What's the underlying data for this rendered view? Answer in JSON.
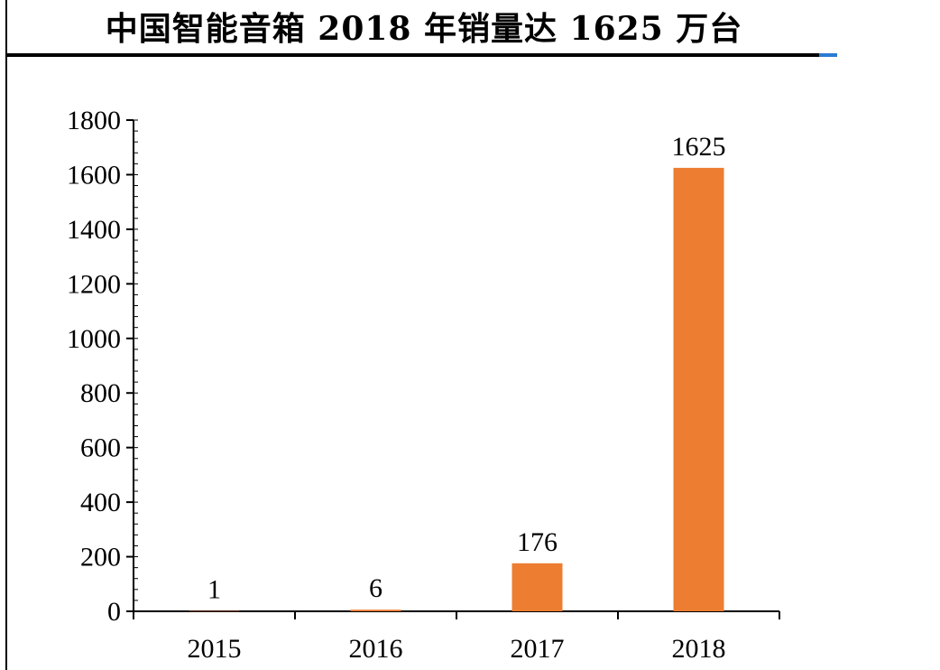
{
  "title": "中国智能音箱 2018 年销量达 1625 万台",
  "colors": {
    "bar": "#ed7d31",
    "axis": "#000000",
    "accent": "#2a7bd3"
  },
  "chart_data": {
    "type": "bar",
    "title": "中国智能音箱 2018 年销量达 1625 万台",
    "categories": [
      "2015",
      "2016",
      "2017",
      "2018"
    ],
    "values": [
      1,
      6,
      176,
      1625
    ],
    "data_labels": [
      "1",
      "6",
      "176",
      "1625"
    ],
    "ylim": [
      0,
      1800
    ],
    "yticks": [
      0,
      200,
      400,
      600,
      800,
      1000,
      1200,
      1400,
      1600,
      1800
    ],
    "ytick_labels": [
      "0",
      "200",
      "400",
      "600",
      "800",
      "1000",
      "1200",
      "1400",
      "1600",
      "1800"
    ],
    "xlabel": "",
    "ylabel": "",
    "grid": false,
    "legend": false
  }
}
